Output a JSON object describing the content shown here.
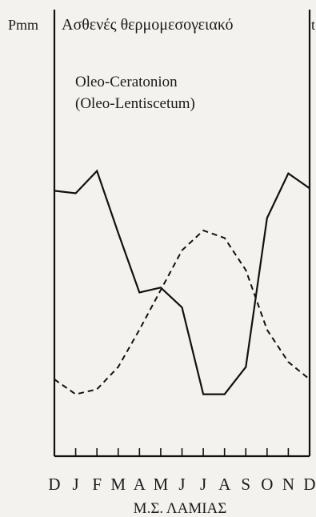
{
  "chart_data": {
    "type": "line",
    "title": "Ασθενές θερμομεσογειακό",
    "annotation": [
      "Oleo-Ceratonion",
      "(Oleo-Lentiscetum)"
    ],
    "left_axis_label": "Pmm",
    "right_axis_label": "t",
    "station": "Μ.Σ. ΛΑΜΙΑΣ",
    "categories": [
      "D",
      "J",
      "F",
      "M",
      "A",
      "M",
      "J",
      "J",
      "A",
      "S",
      "O",
      "N",
      "D"
    ],
    "ylim": [
      0,
      100
    ],
    "grid": false,
    "legend": "none",
    "series": [
      {
        "style": "solid",
        "values": [
          86,
          85,
          94,
          69,
          45,
          47,
          39,
          4,
          4,
          15,
          75,
          93,
          87
        ]
      },
      {
        "style": "dashed",
        "values": [
          10,
          4,
          6,
          15,
          30,
          46,
          62,
          70,
          67,
          54,
          30,
          17,
          10
        ]
      }
    ]
  }
}
